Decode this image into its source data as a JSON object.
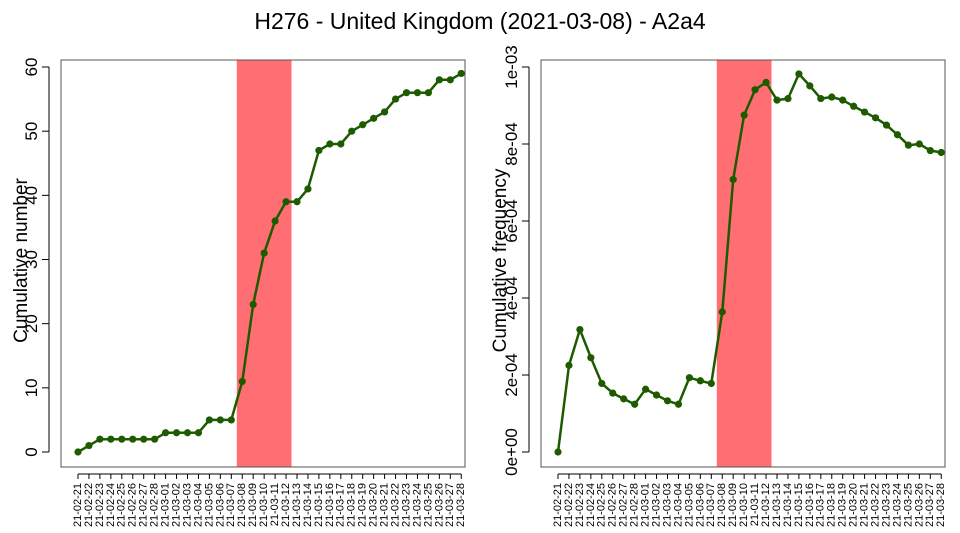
{
  "title": "H276 - United Kingdom (2021-03-08) - A2a4",
  "colors": {
    "line": "#1e5a00",
    "highlight": "#ff6e73",
    "axis": "#000000"
  },
  "chart_data": [
    {
      "type": "line",
      "title": "",
      "xlabel": "",
      "ylabel": "Cumulative number",
      "ylim": [
        0,
        60
      ],
      "yticks": [
        0,
        10,
        20,
        30,
        40,
        50,
        60
      ],
      "ytick_labels": [
        "0",
        "10",
        "20",
        "30",
        "40",
        "50",
        "60"
      ],
      "highlight": {
        "from": "21-03-08",
        "to": "21-03-12"
      },
      "grid": false,
      "categories": [
        "21-02-21",
        "21-02-22",
        "21-02-23",
        "21-02-24",
        "21-02-25",
        "21-02-26",
        "21-02-27",
        "21-02-28",
        "21-03-01",
        "21-03-02",
        "21-03-03",
        "21-03-04",
        "21-03-05",
        "21-03-06",
        "21-03-07",
        "21-03-08",
        "21-03-09",
        "21-03-10",
        "21-03-11",
        "21-03-12",
        "21-03-13",
        "21-03-14",
        "21-03-15",
        "21-03-16",
        "21-03-17",
        "21-03-18",
        "21-03-19",
        "21-03-20",
        "21-03-21",
        "21-03-22",
        "21-03-23",
        "21-03-24",
        "21-03-25",
        "21-03-26",
        "21-03-27",
        "21-03-28"
      ],
      "values": [
        0,
        1,
        2,
        2,
        2,
        2,
        2,
        2,
        3,
        3,
        3,
        3,
        5,
        5,
        5,
        11,
        23,
        31,
        36,
        39,
        39,
        41,
        47,
        48,
        48,
        50,
        51,
        52,
        53,
        55,
        56,
        56,
        56,
        58,
        58,
        59
      ]
    },
    {
      "type": "line",
      "title": "",
      "xlabel": "",
      "ylabel": "Cumulative frequency",
      "ylim": [
        0,
        0.001
      ],
      "yticks": [
        0,
        0.0002,
        0.0004,
        0.0006,
        0.0008,
        0.001
      ],
      "ytick_labels": [
        "0e+00",
        "2e-04",
        "4e-04",
        "6e-04",
        "8e-04",
        "1e-03"
      ],
      "highlight": {
        "from": "21-03-08",
        "to": "21-03-12"
      },
      "grid": false,
      "categories": [
        "21-02-21",
        "21-02-22",
        "21-02-23",
        "21-02-24",
        "21-02-25",
        "21-02-26",
        "21-02-27",
        "21-02-28",
        "21-03-01",
        "21-03-02",
        "21-03-03",
        "21-03-04",
        "21-03-05",
        "21-03-06",
        "21-03-07",
        "21-03-08",
        "21-03-09",
        "21-03-10",
        "21-03-11",
        "21-03-12",
        "21-03-13",
        "21-03-14",
        "21-03-15",
        "21-03-16",
        "21-03-17",
        "21-03-18",
        "21-03-19",
        "21-03-20",
        "21-03-21",
        "21-03-22",
        "21-03-23",
        "21-03-24",
        "21-03-25",
        "21-03-26",
        "21-03-27",
        "21-03-28"
      ],
      "values": [
        0,
        0.000225,
        0.000318,
        0.000245,
        0.000178,
        0.000153,
        0.000138,
        0.000124,
        0.000163,
        0.000148,
        0.000133,
        0.000124,
        0.000193,
        0.000185,
        0.000178,
        0.000364,
        0.000708,
        0.000875,
        0.000941,
        0.00096,
        0.000914,
        0.000918,
        0.000982,
        0.000951,
        0.000918,
        0.000922,
        0.000914,
        0.000898,
        0.000883,
        0.000868,
        0.000849,
        0.000824,
        0.000797,
        0.0008,
        0.000783,
        0.000778
      ]
    }
  ]
}
